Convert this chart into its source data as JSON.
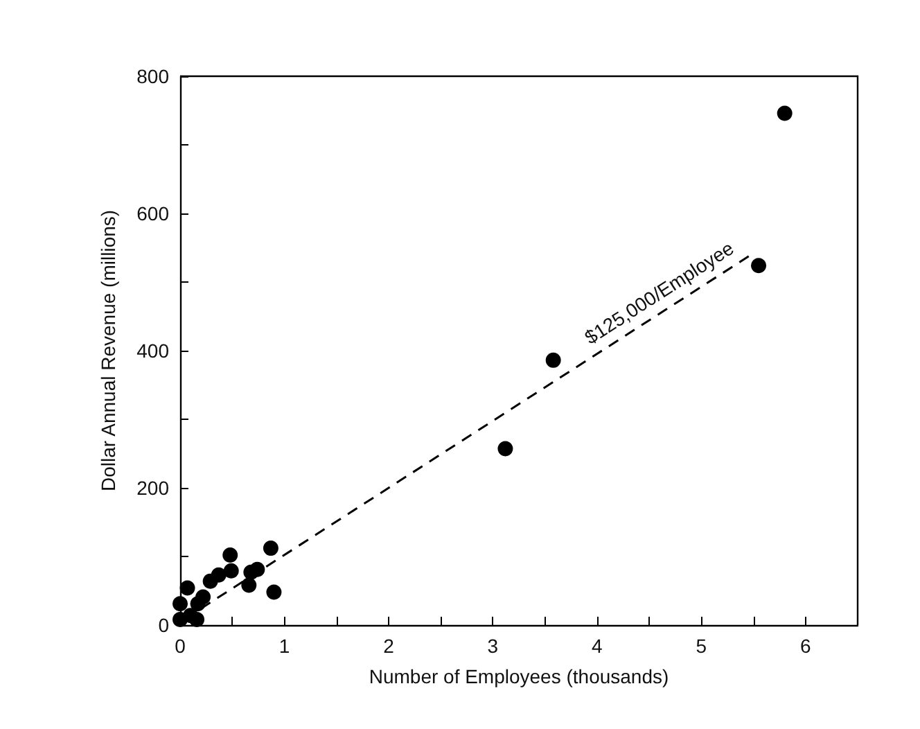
{
  "chart_data": {
    "type": "scatter",
    "xlabel": "Number of Employees (thousands)",
    "ylabel": "Dollar Annual Revenue (millions)",
    "xlim": [
      0,
      6.5
    ],
    "ylim": [
      0,
      800
    ],
    "xticks": [
      0,
      {
        "value": 0.5,
        "label": null
      },
      1,
      {
        "value": 1.5,
        "label": null
      },
      2,
      {
        "value": 2.5,
        "label": null
      },
      3,
      {
        "value": 3.5,
        "label": null
      },
      4,
      {
        "value": 4.5,
        "label": null
      },
      5,
      {
        "value": 5.5,
        "label": null
      },
      6
    ],
    "yticks": [
      0,
      {
        "value": 100,
        "label": null
      },
      200,
      {
        "value": 300,
        "label": null
      },
      400,
      {
        "value": 500,
        "label": null
      },
      600,
      {
        "value": 700,
        "label": null
      },
      800
    ],
    "grid": false,
    "marker": "circle",
    "series": [
      {
        "color": "#000000",
        "x": [
          0.0,
          0.0,
          0.07,
          0.1,
          0.17,
          0.16,
          0.22,
          0.29,
          0.37,
          0.48,
          0.49,
          0.66,
          0.68,
          0.74,
          0.87,
          0.9,
          3.12,
          3.58,
          5.55,
          5.8
        ],
        "values": [
          8,
          31,
          54,
          14,
          31,
          8,
          41,
          64,
          73,
          102,
          79,
          58,
          77,
          81,
          112,
          48,
          257,
          386,
          524,
          746
        ]
      },
      {
        "type": "line",
        "line_style": "dashed",
        "marker": "none",
        "color": "#000000",
        "x": [
          0.2,
          5.48
        ],
        "values": [
          24,
          540
        ]
      }
    ],
    "annotations": [
      "$125,000/Employee"
    ]
  }
}
